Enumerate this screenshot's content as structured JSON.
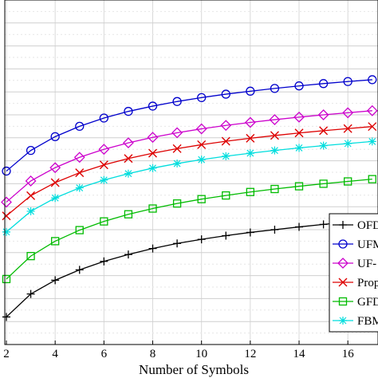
{
  "chart_data": {
    "type": "line",
    "title": "",
    "xlabel": "Number of Symbols",
    "ylabel": "",
    "xlim": [
      2,
      17
    ],
    "ylim": [
      0,
      15
    ],
    "xticks": [
      2,
      4,
      6,
      8,
      10,
      12,
      14,
      16
    ],
    "x_tick_labels": [
      "2",
      "4",
      "6",
      "8",
      "10",
      "12",
      "14",
      "16"
    ],
    "grid": true,
    "legend_position": "bottom-right",
    "x": [
      2,
      3,
      4,
      5,
      6,
      7,
      8,
      9,
      10,
      11,
      12,
      13,
      14,
      15,
      16,
      17
    ],
    "series": [
      {
        "name": "OFD",
        "color": "#000000",
        "marker": "plus",
        "values": [
          1.2,
          2.2,
          2.8,
          3.25,
          3.62,
          3.92,
          4.18,
          4.4,
          4.58,
          4.74,
          4.88,
          5.0,
          5.12,
          5.23,
          5.33,
          5.43
        ]
      },
      {
        "name": "UFM",
        "color": "#0000cc",
        "marker": "circle",
        "values": [
          7.55,
          8.45,
          9.05,
          9.5,
          9.86,
          10.15,
          10.38,
          10.58,
          10.75,
          10.9,
          11.03,
          11.15,
          11.26,
          11.36,
          11.45,
          11.53
        ]
      },
      {
        "name": "UF-",
        "color": "#cc00cc",
        "marker": "diamond",
        "values": [
          6.2,
          7.12,
          7.7,
          8.15,
          8.5,
          8.78,
          9.02,
          9.22,
          9.39,
          9.54,
          9.67,
          9.79,
          9.9,
          10.0,
          10.09,
          10.18
        ]
      },
      {
        "name": "Prop",
        "color": "#dd0000",
        "marker": "x",
        "values": [
          5.6,
          6.48,
          7.05,
          7.48,
          7.82,
          8.1,
          8.33,
          8.53,
          8.7,
          8.85,
          8.98,
          9.1,
          9.21,
          9.31,
          9.4,
          9.49
        ]
      },
      {
        "name": "GFD",
        "color": "#00bb00",
        "marker": "square",
        "values": [
          2.85,
          3.85,
          4.5,
          4.98,
          5.36,
          5.67,
          5.92,
          6.14,
          6.33,
          6.49,
          6.64,
          6.77,
          6.89,
          7.0,
          7.1,
          7.2
        ]
      },
      {
        "name": "FBM",
        "color": "#00dddd",
        "marker": "star",
        "values": [
          4.9,
          5.8,
          6.38,
          6.82,
          7.16,
          7.44,
          7.68,
          7.88,
          8.05,
          8.2,
          8.33,
          8.45,
          8.56,
          8.66,
          8.75,
          8.84
        ]
      }
    ]
  }
}
